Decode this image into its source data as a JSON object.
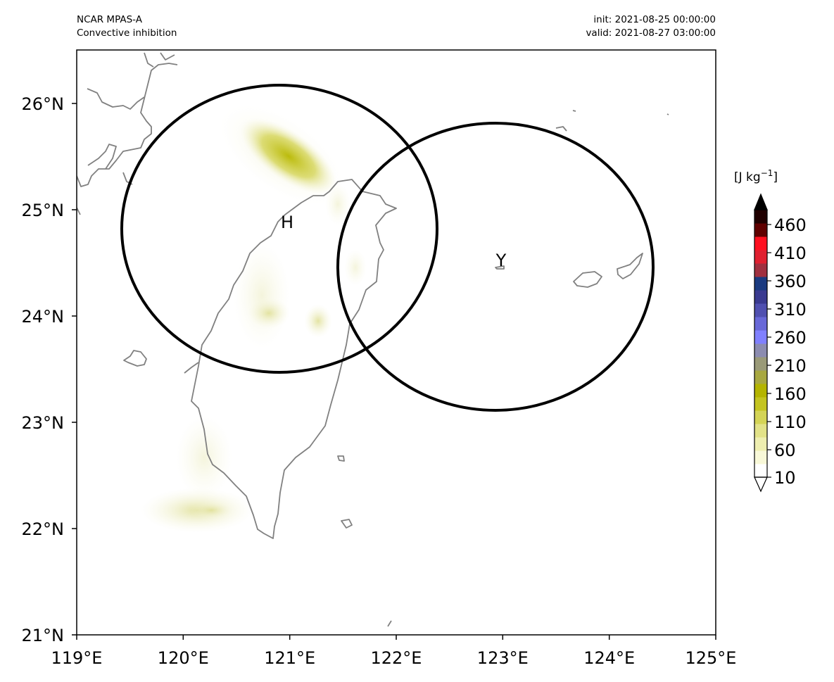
{
  "header": {
    "model": "NCAR MPAS-A",
    "field": "Convective inhibition",
    "init": "init: 2021-08-25 00:00:00",
    "valid": "valid: 2021-08-27 03:00:00"
  },
  "map": {
    "lon_range": [
      119,
      125
    ],
    "lat_range": [
      21,
      26.5
    ],
    "lon_ticks": [
      "119°E",
      "120°E",
      "121°E",
      "122°E",
      "123°E",
      "124°E",
      "125°E"
    ],
    "lat_ticks": [
      "21°N",
      "22°N",
      "23°N",
      "24°N",
      "25°N",
      "26°N"
    ],
    "coastline_color": "#808080",
    "circles": [
      {
        "label": "H",
        "center_lon": 120.9,
        "center_lat": 24.83
      },
      {
        "label": "Y",
        "center_lon": 122.93,
        "center_lat": 24.47
      }
    ]
  },
  "colorbar": {
    "unit_prefix": "[J kg",
    "unit_exp": "−1",
    "unit_suffix": "]",
    "ticks": [
      "460",
      "410",
      "360",
      "310",
      "260",
      "210",
      "160",
      "110",
      "60",
      "10"
    ],
    "colors": [
      "#ffffff",
      "#f8f8d8",
      "#eeeeb0",
      "#e2e288",
      "#d4d456",
      "#c4c420",
      "#b4b400",
      "#a8a840",
      "#9a9a78",
      "#8c8cb0",
      "#8080ff",
      "#6868d8",
      "#5050b0",
      "#3a3a90",
      "#1a3a80",
      "#a03040",
      "#e02030",
      "#ff1020",
      "#600000",
      "#200000"
    ]
  }
}
